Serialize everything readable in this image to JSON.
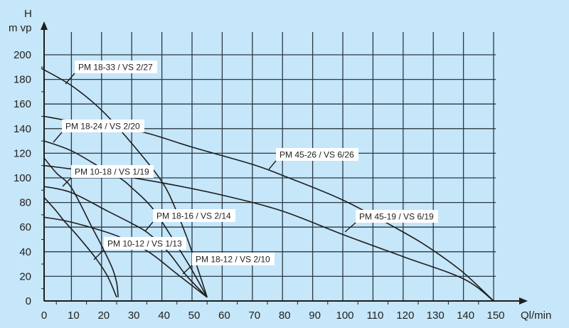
{
  "chart_data": {
    "type": "line",
    "title": "",
    "ylabel": "H",
    "yunit": "m vp",
    "xlabel": "Ql/min",
    "xlim": [
      0,
      150
    ],
    "ylim": [
      0,
      200
    ],
    "xticks": [
      0,
      10,
      20,
      30,
      40,
      50,
      60,
      70,
      80,
      90,
      100,
      110,
      120,
      130,
      140,
      150
    ],
    "yticks": [
      0,
      20,
      40,
      60,
      80,
      100,
      120,
      140,
      160,
      180,
      200
    ],
    "grid": true,
    "colors": {
      "background": "#c6e6f9",
      "line": "#1e1e1e",
      "grid": "#2b3a44",
      "label_box": "#ffffff"
    },
    "series": [
      {
        "name": "PM 18-33 / VS 2/27",
        "x": [
          0,
          10,
          20,
          30,
          40,
          45,
          50,
          55
        ],
        "y": [
          189,
          175,
          155,
          128,
          97,
          72,
          40,
          3
        ]
      },
      {
        "name": "PM 18-24 / VS 2/20",
        "x": [
          1,
          10,
          20,
          26,
          30,
          37,
          45,
          50,
          55
        ],
        "y": [
          130,
          122,
          108,
          100,
          92,
          75,
          45,
          25,
          3
        ]
      },
      {
        "name": "PM 45-26 / VS 6/26",
        "x": [
          1,
          10,
          20,
          34,
          50,
          70,
          80,
          100,
          120,
          130,
          140,
          150
        ],
        "y": [
          150,
          146,
          142,
          137,
          125,
          111,
          102,
          82,
          56,
          41,
          23,
          0
        ]
      },
      {
        "name": "PM 10-18 / VS 1/19",
        "x": [
          1,
          5,
          10,
          17,
          20,
          23.5,
          25,
          25.5
        ],
        "y": [
          116,
          104,
          92,
          59,
          45,
          27,
          15,
          3
        ]
      },
      {
        "name": "PM 18-16 / VS 2/14",
        "x": [
          1,
          10,
          22,
          30,
          35.5,
          42,
          48,
          55
        ],
        "y": [
          93,
          88,
          73,
          63,
          55,
          40,
          21,
          3
        ]
      },
      {
        "name": "PM 10-12 / VS 1/13",
        "x": [
          1,
          5,
          7.6,
          12,
          18,
          22,
          25
        ],
        "y": [
          84,
          73,
          65,
          53,
          35,
          20,
          3
        ]
      },
      {
        "name": "PM 18-12 / VS 2/10",
        "x": [
          1,
          10,
          25,
          35.5,
          45,
          55
        ],
        "y": [
          68,
          64,
          53,
          40,
          22,
          3
        ]
      },
      {
        "name": "PM 45-19 / VS 6/19",
        "x": [
          1,
          20,
          40,
          60,
          80,
          100,
          120,
          140,
          150
        ],
        "y": [
          110,
          104,
          96,
          86,
          73,
          54,
          36,
          18,
          0
        ]
      }
    ]
  }
}
